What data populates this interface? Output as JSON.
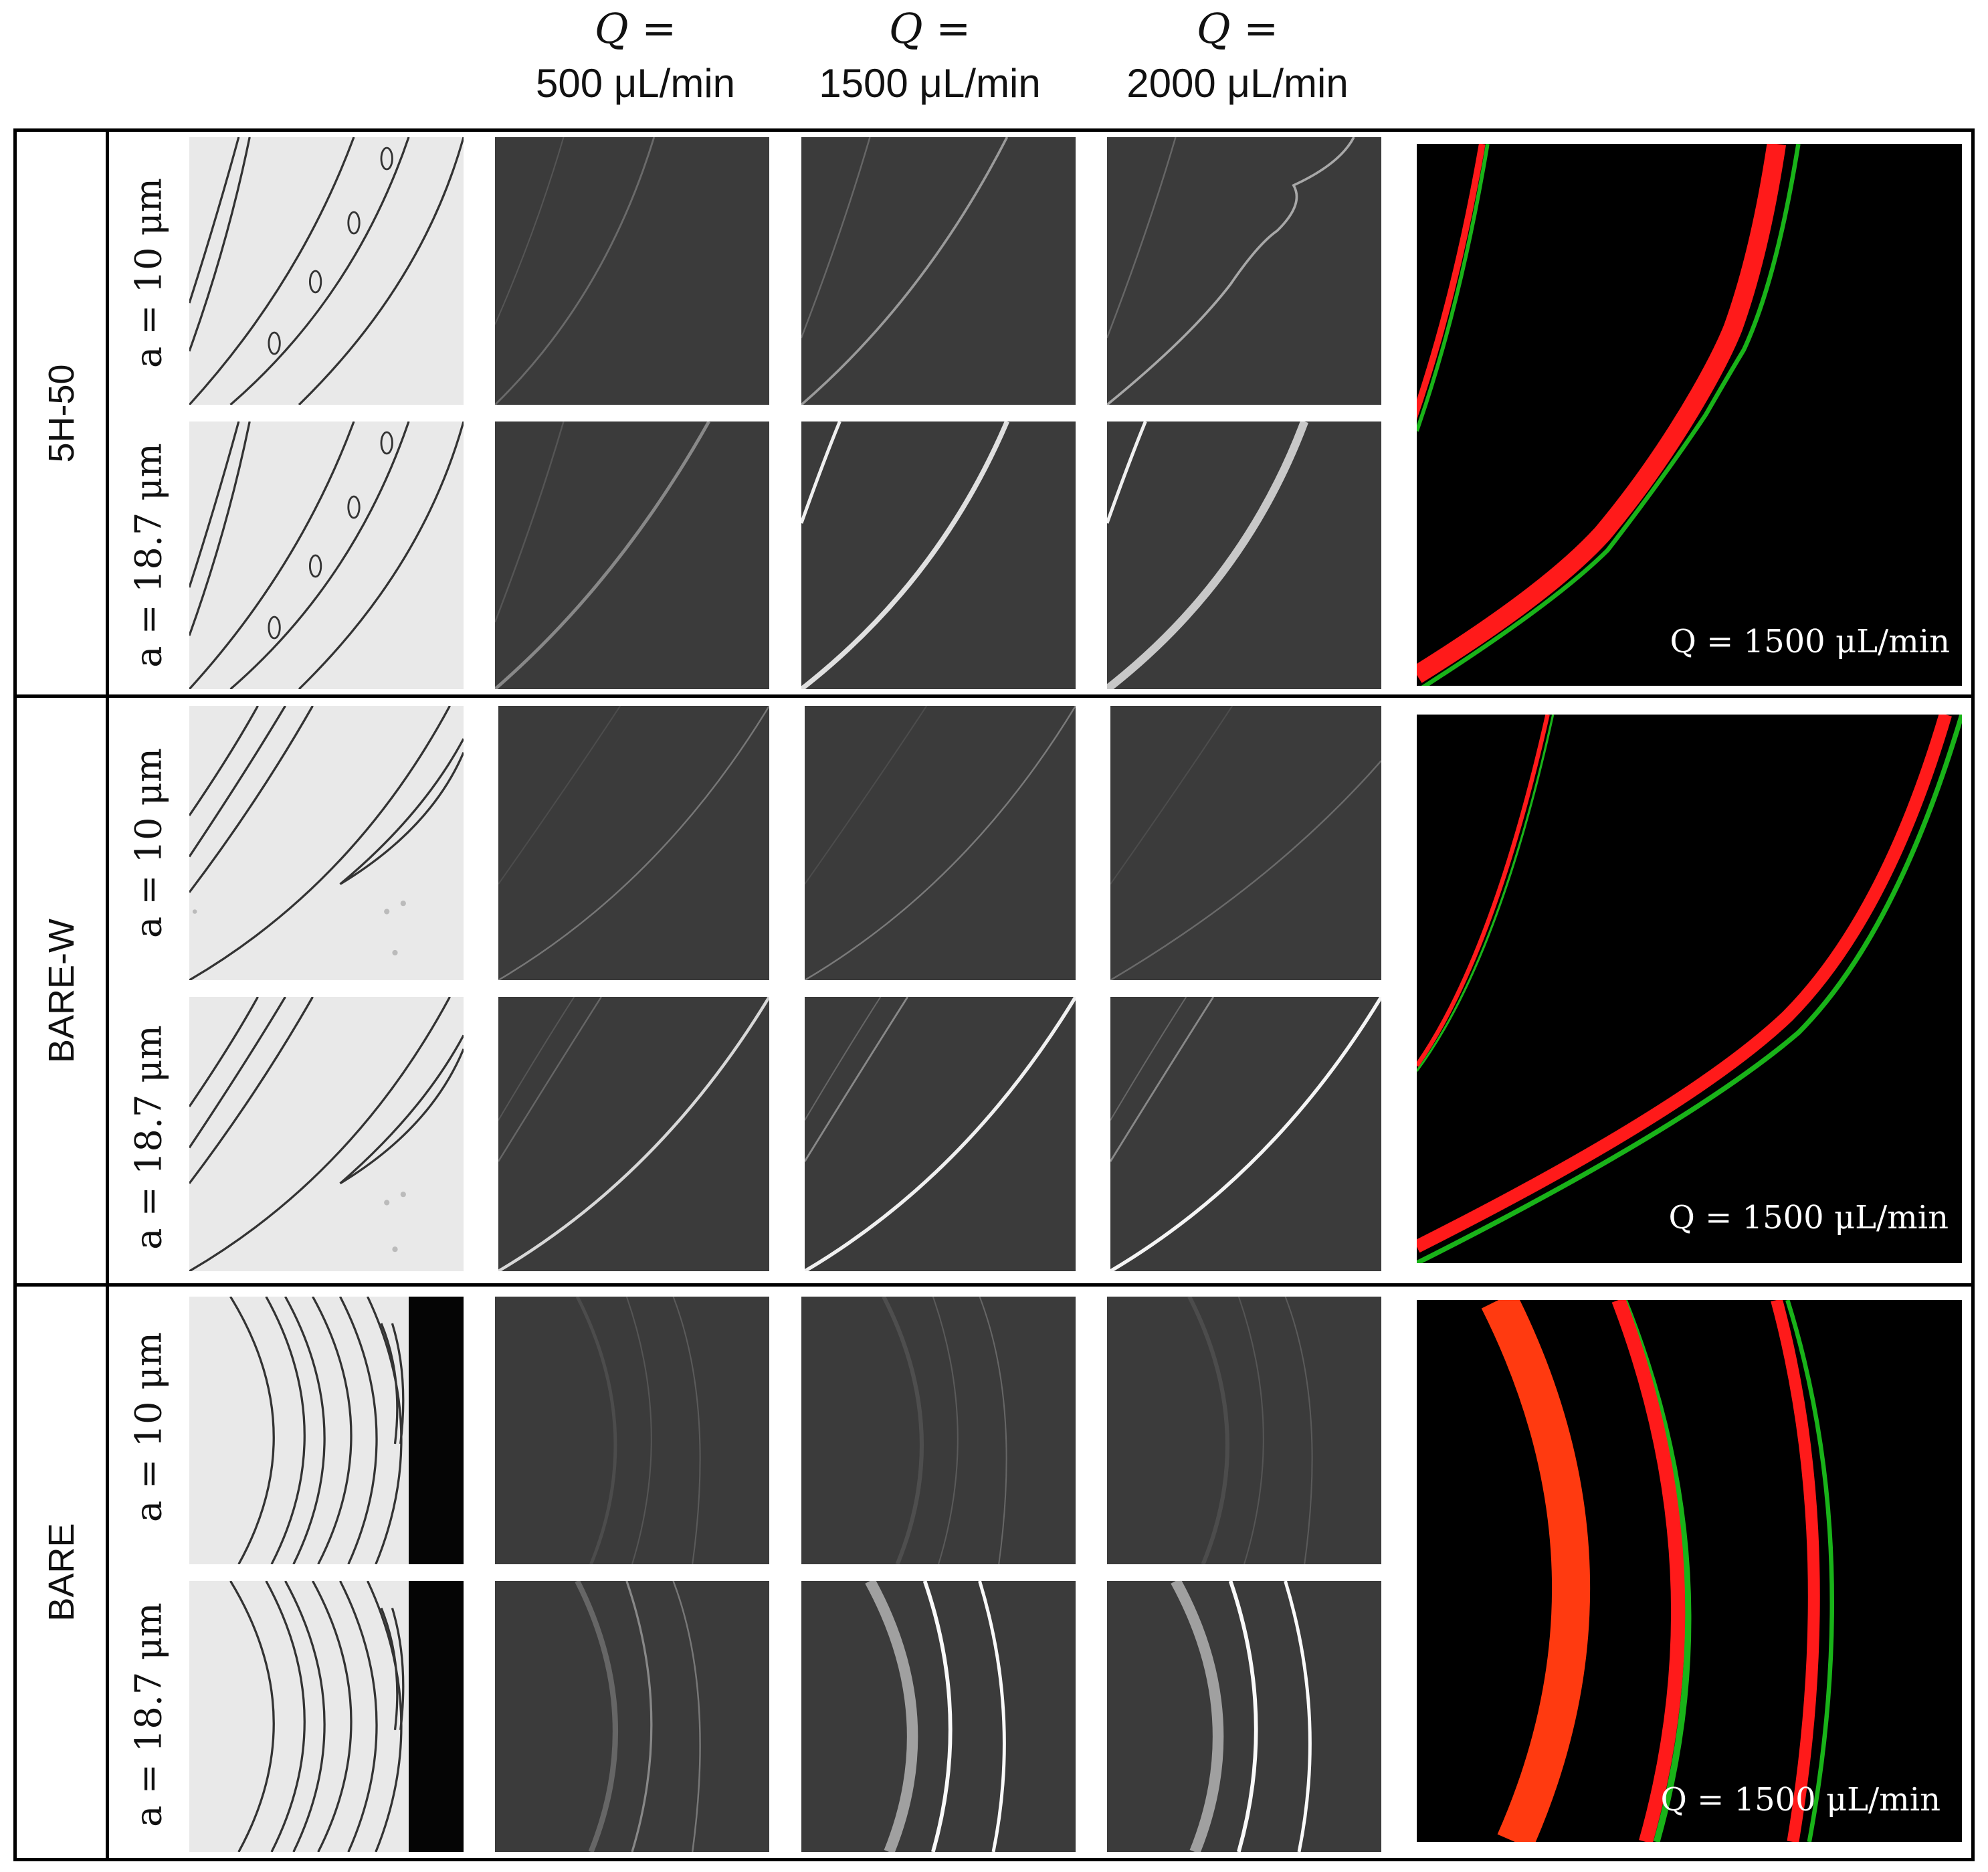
{
  "figure": {
    "flow_rate_columns": [
      {
        "q_label": "Q =",
        "value": "500 μL/min"
      },
      {
        "q_label": "Q =",
        "value": "1500 μL/min"
      },
      {
        "q_label": "Q =",
        "value": "2000 μL/min"
      }
    ],
    "groups": [
      {
        "name": "5H-50",
        "rows": [
          "a = 10 μm",
          "a = 18.7 μm"
        ],
        "overlay_label": "Q = 1500 μL/min"
      },
      {
        "name": "BARE-W",
        "rows": [
          "a = 10 μm",
          "a = 18.7 μm"
        ],
        "overlay_label": "Q = 1500 μL/min"
      },
      {
        "name": "BARE",
        "rows": [
          "a = 10 μm",
          "a = 18.7 μm"
        ],
        "overlay_label": "Q = 1500 μL/min"
      }
    ],
    "colors": {
      "overlay_red": "#ff1a1a",
      "overlay_green": "#19b319",
      "fluorescence_bg": "#3b3b3b",
      "brightfield_bg": "#e9e9e9"
    }
  }
}
